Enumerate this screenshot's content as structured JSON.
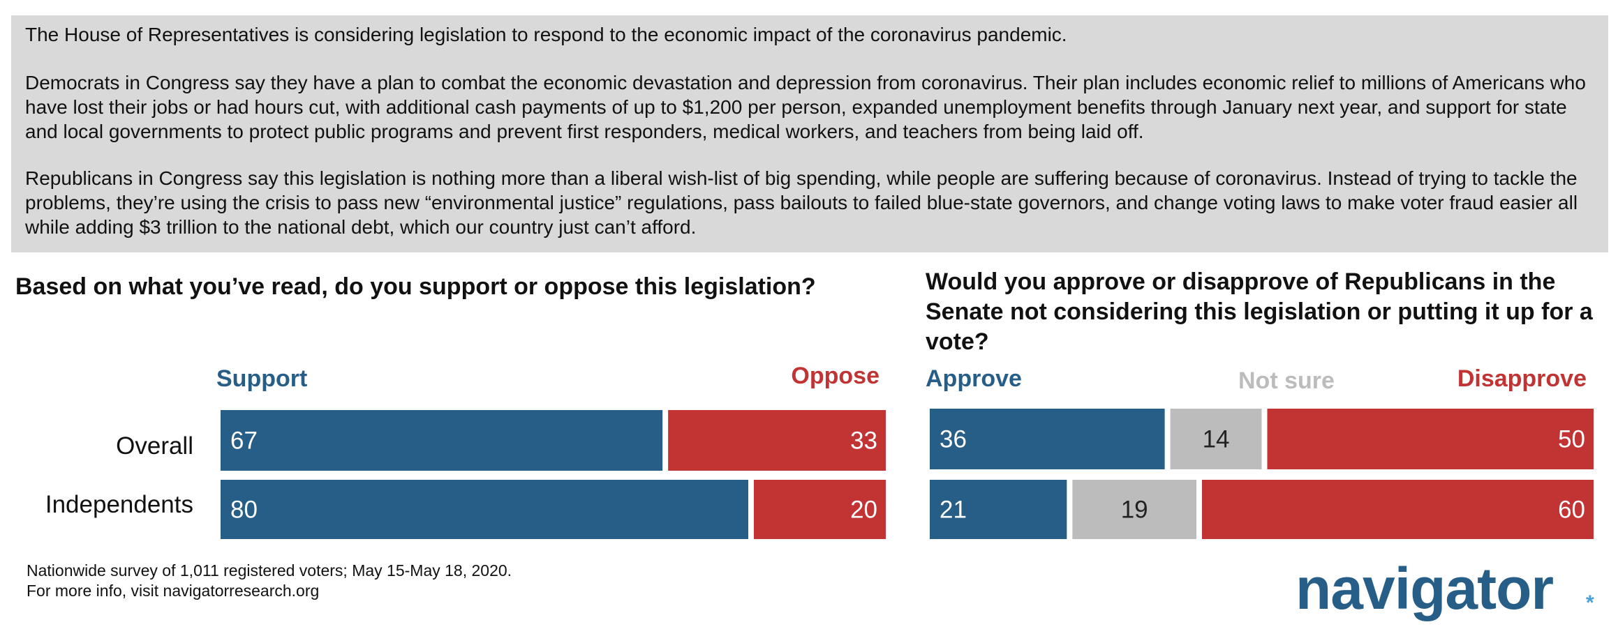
{
  "intro": {
    "p1": "The House of Representatives is considering legislation to respond to the economic impact of the coronavirus pandemic.",
    "p2": "Democrats in Congress say they have a plan to combat the economic devastation and depression from coronavirus. Their plan includes economic relief to millions of Americans who have lost their jobs or had hours cut, with additional cash payments of up to $1,200 per person, expanded unemployment benefits through January next year, and support for state and local governments to protect public programs and prevent first responders, medical workers, and teachers from being laid off.",
    "p3": "Republicans in Congress say this legislation is nothing more than a liberal wish-list of big spending, while people are suffering because of coronavirus. Instead of trying to tackle the problems, they’re using the crisis to pass new “environmental justice” regulations, pass bailouts to failed blue-state governors, and change voting laws to make voter fraud easier all while adding $3 trillion to the national debt, which our country just can’t afford."
  },
  "chart_data": [
    {
      "type": "bar",
      "stacked": true,
      "orientation": "horizontal",
      "title": "Based on what you’ve read, do you support or oppose this legislation?",
      "categories": [
        "Overall",
        "Independents"
      ],
      "series": [
        {
          "name": "Support",
          "values": [
            67,
            80
          ],
          "color": "#275e88"
        },
        {
          "name": "Oppose",
          "values": [
            33,
            20
          ],
          "color": "#c23434"
        }
      ]
    },
    {
      "type": "bar",
      "stacked": true,
      "orientation": "horizontal",
      "title": "Would you approve or disapprove of Republicans in the Senate not considering this legislation or putting it up for a vote?",
      "categories": [
        "Overall",
        "Independents"
      ],
      "series": [
        {
          "name": "Approve",
          "values": [
            36,
            21
          ],
          "color": "#275e88"
        },
        {
          "name": "Not sure",
          "values": [
            14,
            19
          ],
          "color": "#bcbcbc"
        },
        {
          "name": "Disapprove",
          "values": [
            50,
            60
          ],
          "color": "#c23434"
        }
      ]
    }
  ],
  "footnote": {
    "line1": "Nationwide survey of 1,011 registered voters; May 15-May 18, 2020.",
    "line2": "For more info, visit navigatorresearch.org"
  },
  "logo": {
    "text": "navigator",
    "mark": "*"
  }
}
